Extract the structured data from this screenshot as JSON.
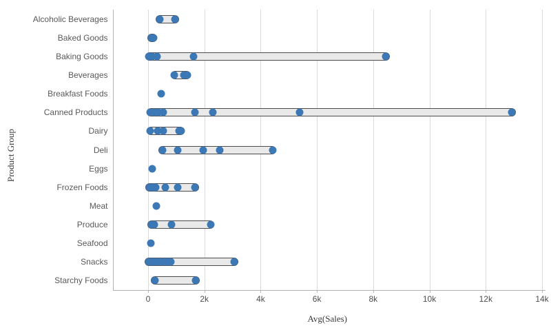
{
  "chart": {
    "x_axis_title": "Avg(Sales)",
    "y_axis_title": "Product Group",
    "colors": {
      "point": "#3b78b5",
      "band_fill": "#e9e9e9",
      "band_border": "#4a4a4a",
      "gridline": "#d9d9d9",
      "axis_line": "#b3b3b3",
      "tick_label": "#4d4d4d",
      "category_label": "#595959",
      "background": "#ffffff"
    }
  },
  "chart_data": {
    "type": "scatter",
    "variant": "distribution-plot-horizontal",
    "title": "",
    "xlabel": "Avg(Sales)",
    "ylabel": "Product Group",
    "xlim": [
      0,
      14000
    ],
    "grid": true,
    "legend": false,
    "x_ticks": [
      {
        "value": 0,
        "label": "0"
      },
      {
        "value": 2000,
        "label": "2k"
      },
      {
        "value": 4000,
        "label": "4k"
      },
      {
        "value": 6000,
        "label": "6k"
      },
      {
        "value": 8000,
        "label": "8k"
      },
      {
        "value": 10000,
        "label": "10k"
      },
      {
        "value": 12000,
        "label": "12k"
      },
      {
        "value": 14000,
        "label": "14k"
      }
    ],
    "rows": [
      {
        "category": "Alcoholic Beverages",
        "points": [
          410,
          960
        ]
      },
      {
        "category": "Baked Goods",
        "points": [
          120,
          190
        ]
      },
      {
        "category": "Baking Goods",
        "points": [
          30,
          150,
          310,
          1620,
          8450
        ]
      },
      {
        "category": "Beverages",
        "points": [
          940,
          1270,
          1390
        ]
      },
      {
        "category": "Breakfast Foods",
        "points": [
          470
        ]
      },
      {
        "category": "Canned Products",
        "points": [
          80,
          230,
          370,
          530,
          1670,
          2310,
          5390,
          12930
        ]
      },
      {
        "category": "Dairy",
        "points": [
          80,
          350,
          550,
          1090,
          1170
        ]
      },
      {
        "category": "Deli",
        "points": [
          510,
          1050,
          1960,
          2550,
          4430
        ]
      },
      {
        "category": "Eggs",
        "points": [
          140
        ]
      },
      {
        "category": "Frozen Foods",
        "points": [
          40,
          160,
          260,
          610,
          1060,
          1670
        ]
      },
      {
        "category": "Meat",
        "points": [
          290
        ]
      },
      {
        "category": "Produce",
        "points": [
          120,
          220,
          840,
          2220
        ]
      },
      {
        "category": "Seafood",
        "points": [
          110
        ]
      },
      {
        "category": "Snacks",
        "points": [
          20,
          100,
          230,
          370,
          510,
          650,
          800,
          3060
        ]
      },
      {
        "category": "Starchy Foods",
        "points": [
          240,
          1690
        ]
      }
    ]
  }
}
